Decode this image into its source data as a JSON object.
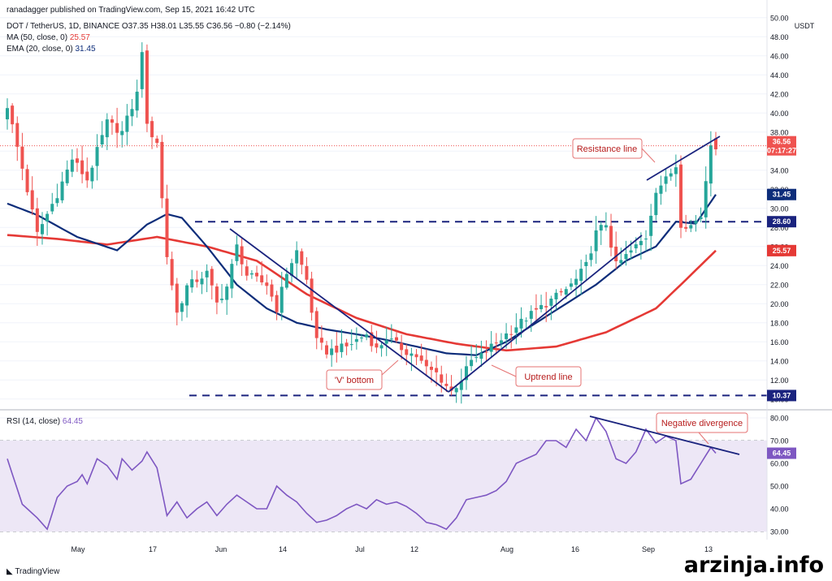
{
  "header": {
    "published": "ranadagger published on TradingView.com, Sep 15, 2021 16:42 UTC",
    "ohlc_line": "DOT / TetherUS, 1D, BINANCE  O37.35  H38.01  L35.55  C36.56  −0.80 (−2.14%)",
    "ma_line_label": "MA (50, close, 0)",
    "ma_line_value": "25.57",
    "ema_line_label": "EMA (20, close, 0)",
    "ema_line_value": "31.45",
    "rsi_label": "RSI (14, close)",
    "rsi_value": "64.45",
    "currency": "USDT"
  },
  "footer": {
    "logo_text": "TradingView",
    "watermark": "arzinja.info"
  },
  "colors": {
    "up": "#26a69a",
    "down": "#ef5350",
    "ema": "#0d2d7a",
    "ma": "#e53935",
    "rsi": "#7e57c2",
    "level": "#1a237e",
    "rsi_band": "#ede7f6",
    "annotation": "#e57373"
  },
  "chart_data": [
    {
      "type": "candlestick",
      "title": "DOT / TetherUS, 1D, BINANCE",
      "y_axis_ticks": [
        "50.00",
        "48.00",
        "46.00",
        "44.00",
        "42.00",
        "40.00",
        "38.00",
        "36.00",
        "34.00",
        "32.00",
        "30.00",
        "28.00",
        "26.00",
        "24.00",
        "22.00",
        "20.00",
        "18.00",
        "16.00",
        "14.00",
        "12.00",
        "10.00"
      ],
      "ylim": [
        9.3,
        51.0
      ],
      "x_axis_ticks": [
        "May",
        "17",
        "Jun",
        "14",
        "Jul",
        "12",
        "Aug",
        "16",
        "Sep",
        "13"
      ],
      "last_price": {
        "value": "36.56",
        "countdown": "07:17:27"
      },
      "ema_tag": {
        "label": "EMA",
        "value": "31.45"
      },
      "ma_tag": {
        "label": "MA",
        "value": "25.57"
      },
      "levels": [
        {
          "value": 28.6,
          "label": "28.60"
        },
        {
          "value": 10.37,
          "label": "10.37"
        }
      ],
      "annotations": [
        "Resistance line",
        "'V' bottom",
        "Uptrend line"
      ],
      "ema_anchors": [
        [
          0,
          30.5
        ],
        [
          6,
          29.3
        ],
        [
          14,
          27.0
        ],
        [
          22,
          25.6
        ],
        [
          28,
          28.3
        ],
        [
          32,
          29.4
        ],
        [
          35,
          29.0
        ],
        [
          40,
          26.0
        ],
        [
          46,
          22.0
        ],
        [
          52,
          19.5
        ],
        [
          58,
          18.0
        ],
        [
          64,
          17.3
        ],
        [
          70,
          16.8
        ],
        [
          76,
          16.2
        ],
        [
          82,
          15.5
        ],
        [
          88,
          14.8
        ],
        [
          94,
          14.6
        ],
        [
          100,
          16.0
        ],
        [
          106,
          18.0
        ],
        [
          112,
          20.0
        ],
        [
          118,
          22.0
        ],
        [
          124,
          24.5
        ],
        [
          130,
          26.0
        ],
        [
          134,
          28.6
        ],
        [
          138,
          28.4
        ],
        [
          142,
          31.45
        ]
      ],
      "ma_anchors": [
        [
          0,
          27.2
        ],
        [
          10,
          26.8
        ],
        [
          20,
          26.2
        ],
        [
          30,
          27.0
        ],
        [
          40,
          26.0
        ],
        [
          50,
          24.5
        ],
        [
          60,
          21.0
        ],
        [
          70,
          18.5
        ],
        [
          80,
          16.8
        ],
        [
          90,
          15.8
        ],
        [
          100,
          15.1
        ],
        [
          110,
          15.5
        ],
        [
          120,
          17.0
        ],
        [
          130,
          19.5
        ],
        [
          135,
          22.0
        ],
        [
          142,
          25.57
        ]
      ],
      "close_anchors": [
        [
          0,
          40.8
        ],
        [
          3,
          34.2
        ],
        [
          6,
          27.3
        ],
        [
          10,
          31.5
        ],
        [
          13,
          35.2
        ],
        [
          16,
          33.0
        ],
        [
          20,
          39.0
        ],
        [
          23,
          38.0
        ],
        [
          26,
          42.0
        ],
        [
          27,
          46.7
        ],
        [
          28,
          38.5
        ],
        [
          30,
          37.0
        ],
        [
          32,
          25.0
        ],
        [
          34,
          19.0
        ],
        [
          36,
          21.8
        ],
        [
          40,
          23.2
        ],
        [
          42,
          20.0
        ],
        [
          44,
          21.8
        ],
        [
          46,
          26.0
        ],
        [
          48,
          23.0
        ],
        [
          52,
          22.0
        ],
        [
          54,
          19.5
        ],
        [
          56,
          23.3
        ],
        [
          58,
          25.5
        ],
        [
          60,
          22.5
        ],
        [
          62,
          16.0
        ],
        [
          64,
          15.0
        ],
        [
          68,
          15.5
        ],
        [
          70,
          16.2
        ],
        [
          72,
          16.8
        ],
        [
          74,
          15.2
        ],
        [
          76,
          16.4
        ],
        [
          80,
          15.0
        ],
        [
          82,
          14.5
        ],
        [
          84,
          13.2
        ],
        [
          86,
          12.7
        ],
        [
          88,
          11.4
        ],
        [
          89,
          10.8
        ],
        [
          91,
          12.1
        ],
        [
          93,
          14.0
        ],
        [
          95,
          14.5
        ],
        [
          97,
          15.5
        ],
        [
          100,
          16.8
        ],
        [
          104,
          18.5
        ],
        [
          108,
          20.0
        ],
        [
          112,
          21.5
        ],
        [
          114,
          22.5
        ],
        [
          116,
          24.0
        ],
        [
          118,
          27.4
        ],
        [
          120,
          28.4
        ],
        [
          122,
          24.0
        ],
        [
          124,
          25.0
        ],
        [
          128,
          27.0
        ],
        [
          130,
          32.0
        ],
        [
          132,
          33.0
        ],
        [
          134,
          34.5
        ],
        [
          135,
          28.4
        ],
        [
          137,
          28.2
        ],
        [
          139,
          29.2
        ],
        [
          140,
          33.0
        ],
        [
          141,
          37.0
        ],
        [
          142,
          36.56
        ]
      ],
      "count": 143
    },
    {
      "type": "line",
      "title": "RSI (14, close)",
      "y_axis_ticks": [
        "80.00",
        "70.00",
        "60.00",
        "50.00",
        "40.00",
        "30.00"
      ],
      "ylim": [
        27.5,
        82.5
      ],
      "band": [
        30,
        70
      ],
      "mid": 50,
      "current": {
        "label": "RSI",
        "value": "64.45"
      },
      "annotations": [
        "Negative divergence"
      ],
      "anchors": [
        [
          0,
          62.0
        ],
        [
          3,
          42.0
        ],
        [
          6,
          36.0
        ],
        [
          8,
          31.0
        ],
        [
          10,
          45.0
        ],
        [
          12,
          50.0
        ],
        [
          14,
          52.0
        ],
        [
          15,
          55.0
        ],
        [
          16,
          51.0
        ],
        [
          18,
          62.0
        ],
        [
          20,
          59.0
        ],
        [
          22,
          53.0
        ],
        [
          23,
          62.0
        ],
        [
          25,
          57.0
        ],
        [
          27,
          61.0
        ],
        [
          28,
          65.0
        ],
        [
          30,
          58.0
        ],
        [
          32,
          37.0
        ],
        [
          34,
          43.0
        ],
        [
          36,
          36.0
        ],
        [
          38,
          40.0
        ],
        [
          40,
          43.0
        ],
        [
          42,
          37.0
        ],
        [
          44,
          42.0
        ],
        [
          46,
          46.0
        ],
        [
          48,
          43.0
        ],
        [
          50,
          40.0
        ],
        [
          52,
          40.0
        ],
        [
          54,
          50.0
        ],
        [
          56,
          46.0
        ],
        [
          58,
          43.0
        ],
        [
          60,
          38.0
        ],
        [
          62,
          34.0
        ],
        [
          64,
          35.0
        ],
        [
          66,
          37.0
        ],
        [
          68,
          40.0
        ],
        [
          70,
          42.0
        ],
        [
          72,
          40.0
        ],
        [
          74,
          44.0
        ],
        [
          76,
          42.0
        ],
        [
          78,
          43.0
        ],
        [
          80,
          41.0
        ],
        [
          82,
          38.0
        ],
        [
          84,
          34.0
        ],
        [
          86,
          33.0
        ],
        [
          88,
          31.0
        ],
        [
          90,
          36.0
        ],
        [
          92,
          44.0
        ],
        [
          94,
          45.0
        ],
        [
          96,
          46.0
        ],
        [
          98,
          48.0
        ],
        [
          100,
          52.0
        ],
        [
          102,
          60.0
        ],
        [
          104,
          62.0
        ],
        [
          106,
          64.0
        ],
        [
          108,
          70.0
        ],
        [
          110,
          70.0
        ],
        [
          112,
          67.0
        ],
        [
          114,
          75.0
        ],
        [
          116,
          70.0
        ],
        [
          118,
          80.0
        ],
        [
          120,
          74.0
        ],
        [
          122,
          62.0
        ],
        [
          124,
          60.0
        ],
        [
          126,
          65.0
        ],
        [
          128,
          75.0
        ],
        [
          130,
          69.0
        ],
        [
          132,
          72.0
        ],
        [
          134,
          70.0
        ],
        [
          135,
          51.0
        ],
        [
          137,
          53.0
        ],
        [
          139,
          60.0
        ],
        [
          141,
          67.0
        ],
        [
          142,
          64.45
        ]
      ]
    }
  ]
}
